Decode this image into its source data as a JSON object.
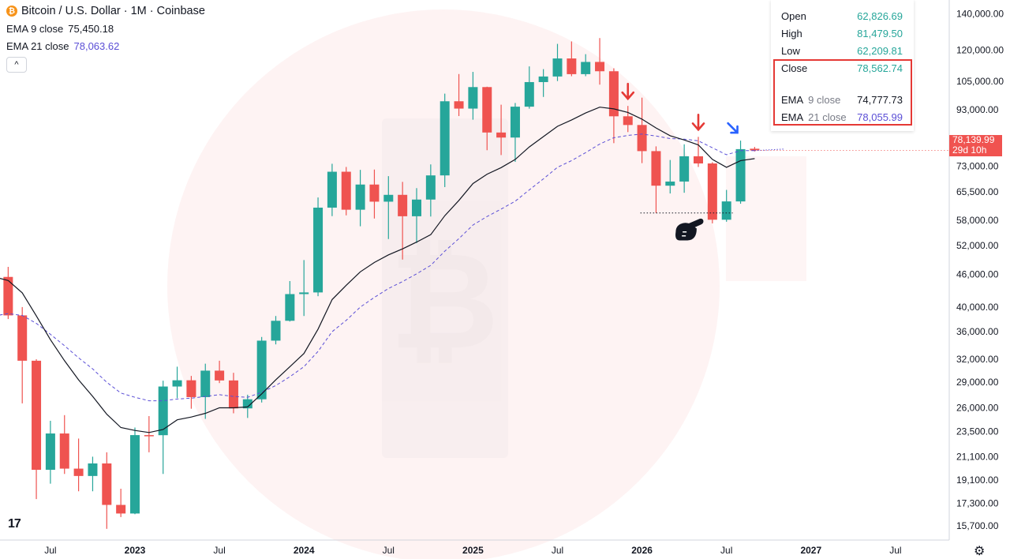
{
  "header": {
    "title": "Bitcoin / U.S. Dollar · 1M · Coinbase",
    "coin_symbol": "₿",
    "ema9_label": "EMA 9 close",
    "ema9_value": "75,450.18",
    "ema21_label": "EMA 21 close",
    "ema21_value": "78,063.62",
    "collapse_symbol": "^"
  },
  "ohlc": {
    "open_label": "Open",
    "open": "62,826.69",
    "high_label": "High",
    "high": "81,479.50",
    "low_label": "Low",
    "low": "62,209.81",
    "close_label": "Close",
    "close": "78,562.74",
    "ema9_a": "EMA",
    "ema9_b": "9 close",
    "ema9": "74,777.73",
    "ema21_a": "EMA",
    "ema21_b": "21 close",
    "ema21": "78,055.99"
  },
  "price_tag": {
    "price": "78,139.99",
    "countdown": "29d 10h"
  },
  "logo": "17",
  "colors": {
    "up": "#26a69a",
    "down": "#ef5350",
    "ema9": "#131722",
    "ema21": "#5b4fd6",
    "arrow_red": "#e53935",
    "arrow_blue": "#2962ff",
    "accent_box": "#e53935"
  },
  "chart_data": {
    "type": "candlestick",
    "y_scale": "log",
    "ylim": [
      14800,
      142000
    ],
    "y_ticks": [
      15700,
      17300,
      19100,
      21100,
      23500,
      26000,
      29000,
      32000,
      36000,
      40000,
      46000,
      52000,
      58000,
      65500,
      73000,
      81000,
      93000,
      105000,
      120000,
      140000
    ],
    "y_tick_labels": [
      "15,700.00",
      "17,300.00",
      "19,100.00",
      "21,100.00",
      "23,500.00",
      "26,000.00",
      "29,000.00",
      "32,000.00",
      "36,000.00",
      "40,000.00",
      "46,000.00",
      "52,000.00",
      "58,000.00",
      "65,500.00",
      "73,000.00",
      "81,000.00",
      "93,000.00",
      "105,000.00",
      "120,000.00",
      "140,000.00"
    ],
    "x_ticks": [
      {
        "label": "Jul",
        "i": 4
      },
      {
        "label": "2023",
        "i": 10
      },
      {
        "label": "Jul",
        "i": 16
      },
      {
        "label": "2024",
        "i": 22
      },
      {
        "label": "Jul",
        "i": 28
      },
      {
        "label": "2025",
        "i": 34
      },
      {
        "label": "Jul",
        "i": 40
      },
      {
        "label": "2026",
        "i": 46
      },
      {
        "label": "Jul",
        "i": 52
      },
      {
        "label": "2027",
        "i": 58
      },
      {
        "label": "Jul",
        "i": 64
      }
    ],
    "candles": [
      {
        "date": "2022-03",
        "o": 43000,
        "h": 48000,
        "l": 37500,
        "c": 45500
      },
      {
        "date": "2022-04",
        "o": 45500,
        "h": 47500,
        "l": 38000,
        "c": 38600
      },
      {
        "date": "2022-05",
        "o": 38600,
        "h": 40000,
        "l": 26500,
        "c": 31800
      },
      {
        "date": "2022-06",
        "o": 31800,
        "h": 32000,
        "l": 17600,
        "c": 19950
      },
      {
        "date": "2022-07",
        "o": 19950,
        "h": 24600,
        "l": 18800,
        "c": 23300
      },
      {
        "date": "2022-08",
        "o": 23300,
        "h": 25200,
        "l": 19600,
        "c": 20050
      },
      {
        "date": "2022-09",
        "o": 20050,
        "h": 22800,
        "l": 18200,
        "c": 19430
      },
      {
        "date": "2022-10",
        "o": 19430,
        "h": 21100,
        "l": 18200,
        "c": 20500
      },
      {
        "date": "2022-11",
        "o": 20500,
        "h": 21500,
        "l": 15500,
        "c": 17170
      },
      {
        "date": "2022-12",
        "o": 17170,
        "h": 18400,
        "l": 16300,
        "c": 16550
      },
      {
        "date": "2023-01",
        "o": 16550,
        "h": 23900,
        "l": 16500,
        "c": 23140
      },
      {
        "date": "2023-02",
        "o": 23140,
        "h": 25100,
        "l": 21500,
        "c": 23130
      },
      {
        "date": "2023-03",
        "o": 23130,
        "h": 29200,
        "l": 19600,
        "c": 28480
      },
      {
        "date": "2023-04",
        "o": 28480,
        "h": 31000,
        "l": 27100,
        "c": 29250
      },
      {
        "date": "2023-05",
        "o": 29250,
        "h": 29800,
        "l": 25900,
        "c": 27220
      },
      {
        "date": "2023-06",
        "o": 27220,
        "h": 31400,
        "l": 24800,
        "c": 30480
      },
      {
        "date": "2023-07",
        "o": 30480,
        "h": 31800,
        "l": 28900,
        "c": 29230
      },
      {
        "date": "2023-08",
        "o": 29230,
        "h": 30200,
        "l": 25400,
        "c": 25940
      },
      {
        "date": "2023-09",
        "o": 25940,
        "h": 27500,
        "l": 24900,
        "c": 26970
      },
      {
        "date": "2023-10",
        "o": 26970,
        "h": 35200,
        "l": 26600,
        "c": 34650
      },
      {
        "date": "2023-11",
        "o": 34650,
        "h": 38500,
        "l": 34100,
        "c": 37720
      },
      {
        "date": "2023-12",
        "o": 37720,
        "h": 44700,
        "l": 37600,
        "c": 42280
      },
      {
        "date": "2024-01",
        "o": 42280,
        "h": 48900,
        "l": 38500,
        "c": 42580
      },
      {
        "date": "2024-02",
        "o": 42580,
        "h": 63900,
        "l": 41900,
        "c": 61180
      },
      {
        "date": "2024-03",
        "o": 61180,
        "h": 73800,
        "l": 59000,
        "c": 71330
      },
      {
        "date": "2024-04",
        "o": 71330,
        "h": 72800,
        "l": 59200,
        "c": 60640
      },
      {
        "date": "2024-05",
        "o": 60640,
        "h": 71900,
        "l": 56500,
        "c": 67530
      },
      {
        "date": "2024-06",
        "o": 67530,
        "h": 72000,
        "l": 58400,
        "c": 62760
      },
      {
        "date": "2024-07",
        "o": 62760,
        "h": 70000,
        "l": 53500,
        "c": 64620
      },
      {
        "date": "2024-08",
        "o": 64620,
        "h": 68300,
        "l": 49000,
        "c": 58970
      },
      {
        "date": "2024-09",
        "o": 58970,
        "h": 66500,
        "l": 52600,
        "c": 63330
      },
      {
        "date": "2024-10",
        "o": 63330,
        "h": 73600,
        "l": 58900,
        "c": 70220
      },
      {
        "date": "2024-11",
        "o": 70220,
        "h": 99600,
        "l": 66800,
        "c": 96400
      },
      {
        "date": "2024-12",
        "o": 96400,
        "h": 108300,
        "l": 90500,
        "c": 93430
      },
      {
        "date": "2025-01",
        "o": 93430,
        "h": 109300,
        "l": 89100,
        "c": 102430
      },
      {
        "date": "2025-02",
        "o": 102430,
        "h": 102600,
        "l": 78200,
        "c": 84350
      },
      {
        "date": "2025-03",
        "o": 84350,
        "h": 95000,
        "l": 76600,
        "c": 82550
      },
      {
        "date": "2025-04",
        "o": 82550,
        "h": 95700,
        "l": 74400,
        "c": 94200
      },
      {
        "date": "2025-05",
        "o": 94200,
        "h": 111900,
        "l": 93400,
        "c": 104640
      },
      {
        "date": "2025-06",
        "o": 104640,
        "h": 110600,
        "l": 98200,
        "c": 107170
      },
      {
        "date": "2025-07",
        "o": 107170,
        "h": 123200,
        "l": 105100,
        "c": 115760
      },
      {
        "date": "2025-08",
        "o": 115760,
        "h": 124500,
        "l": 107300,
        "c": 108250
      },
      {
        "date": "2025-09",
        "o": 108250,
        "h": 117900,
        "l": 107300,
        "c": 114050
      },
      {
        "date": "2025-10",
        "o": 114050,
        "h": 126300,
        "l": 103500,
        "c": 109600
      },
      {
        "date": "2025-11",
        "o": 109600,
        "h": 111000,
        "l": 80600,
        "c": 90400
      },
      {
        "date": "2025-12",
        "o": 90400,
        "h": 94500,
        "l": 84500,
        "c": 87100
      },
      {
        "date": "2026-01",
        "o": 87100,
        "h": 97900,
        "l": 74000,
        "c": 77900
      },
      {
        "date": "2026-02",
        "o": 77900,
        "h": 79500,
        "l": 59800,
        "c": 67200
      },
      {
        "date": "2026-03",
        "o": 67200,
        "h": 75000,
        "l": 65000,
        "c": 68400
      },
      {
        "date": "2026-04",
        "o": 68400,
        "h": 80200,
        "l": 65200,
        "c": 76200
      },
      {
        "date": "2026-05",
        "o": 76200,
        "h": 82800,
        "l": 72800,
        "c": 73900
      },
      {
        "date": "2026-06",
        "o": 73900,
        "h": 74300,
        "l": 57200,
        "c": 58100
      },
      {
        "date": "2026-07",
        "o": 58100,
        "h": 66000,
        "l": 57600,
        "c": 62830
      },
      {
        "date": "2026-08",
        "o": 62826.69,
        "h": 81479.5,
        "l": 62209.81,
        "c": 78562.74
      },
      {
        "date": "2026-09",
        "o": 78700,
        "h": 79300,
        "l": 77800,
        "c": 78139.99
      }
    ],
    "ema9": [
      45500,
      44800,
      42500,
      38500,
      34800,
      31800,
      29300,
      27300,
      25300,
      23900,
      23600,
      23400,
      23700,
      24700,
      25000,
      25400,
      26000,
      26000,
      26100,
      27600,
      29300,
      31000,
      32800,
      36400,
      41300,
      43900,
      46500,
      48400,
      50000,
      51300,
      52800,
      54500,
      59100,
      63100,
      67800,
      70600,
      72600,
      75200,
      79300,
      82900,
      86600,
      89000,
      91700,
      94000,
      93300,
      91900,
      89300,
      86000,
      83200,
      81700,
      80000,
      75200,
      72700,
      74800,
      75450.18
    ],
    "ema21": [
      38500,
      38900,
      38600,
      37300,
      35600,
      33900,
      32200,
      30700,
      29000,
      27700,
      27200,
      26800,
      26800,
      27000,
      27100,
      27300,
      27500,
      27300,
      27200,
      27800,
      28600,
      29700,
      31000,
      33100,
      36000,
      37800,
      40000,
      41700,
      43300,
      44600,
      46100,
      47800,
      50800,
      53600,
      56800,
      58900,
      60800,
      62900,
      66000,
      69200,
      72700,
      74800,
      77400,
      80300,
      82500,
      83300,
      83800,
      83100,
      82200,
      82000,
      81400,
      79000,
      76700,
      78055.99,
      78063.62
    ],
    "ema21_projection_end": 78600
  },
  "annotations": {
    "red_arrows": [
      "2025-12",
      "2026-05"
    ],
    "blue_arrow": "2026-08",
    "support_line_value": 59800,
    "pointer_icon": "pointing-hand-icon"
  }
}
